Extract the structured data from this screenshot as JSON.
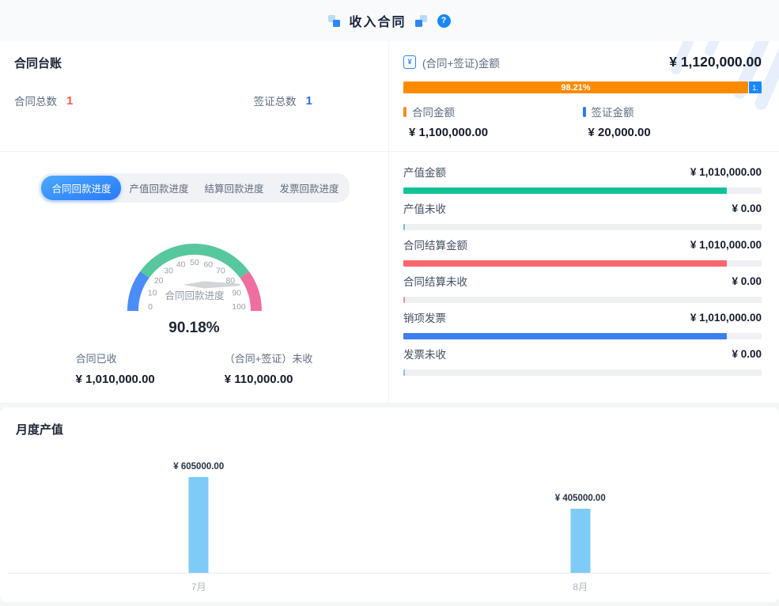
{
  "header": {
    "title": "收入合同",
    "help_glyph": "?"
  },
  "ledger": {
    "title": "合同台账",
    "stats": [
      {
        "label": "合同总数",
        "value": "1",
        "color": "#f5594a"
      },
      {
        "label": "签证总数",
        "value": "1",
        "color": "#2a6cf5"
      }
    ]
  },
  "amount_summary": {
    "icon_glyph": "¥",
    "label": "(合同+签证)金额",
    "total": "¥ 1,120,000.00",
    "progress": {
      "main_pct_label": "98.21%",
      "main_pct": 98.21,
      "main_color": "#fb8a00",
      "tail_label": "1.",
      "tail_color": "#1789fd"
    },
    "legend": [
      {
        "label": "合同金额",
        "color": "#fa8c16",
        "value": "¥ 1,100,000.00"
      },
      {
        "label": "签证金额",
        "color": "#2e7af2",
        "value": "¥ 20,000.00"
      }
    ]
  },
  "progress_tabs": {
    "items": [
      {
        "label": "合同回款进度",
        "active": true
      },
      {
        "label": "产值回款进度",
        "active": false
      },
      {
        "label": "结算回款进度",
        "active": false
      },
      {
        "label": "发票回款进度",
        "active": false
      }
    ]
  },
  "chart_data": [
    {
      "id": "recovery_gauge",
      "type": "gauge",
      "title": "合同回款进度",
      "value": 90.18,
      "value_label": "90.18%",
      "min": 0,
      "max": 100,
      "ticks": [
        0,
        10,
        20,
        30,
        40,
        50,
        60,
        70,
        80,
        90,
        100
      ],
      "segments": [
        {
          "from": 0,
          "to": 20,
          "color": "#4a8df8"
        },
        {
          "from": 20,
          "to": 80,
          "color": "#57c79d"
        },
        {
          "from": 80,
          "to": 100,
          "color": "#ef6fa0"
        }
      ],
      "stats": [
        {
          "label": "合同已收",
          "value": "¥ 1,010,000.00"
        },
        {
          "label": "（合同+签证）未收",
          "value": "¥ 110,000.00"
        }
      ]
    },
    {
      "id": "amount_bars",
      "type": "bar",
      "orientation": "horizontal",
      "max": 1120000,
      "rows": [
        {
          "label": "产值金额",
          "value": 1010000,
          "value_label": "¥ 1,010,000.00",
          "color": "#12c296",
          "fill_pct": 90.2
        },
        {
          "label": "产值未收",
          "value": 0,
          "value_label": "¥ 0.00",
          "color": "#6ac3ce",
          "fill_pct": 0.55
        },
        {
          "label": "合同结算金额",
          "value": 1010000,
          "value_label": "¥ 1,010,000.00",
          "color": "#f8676e",
          "fill_pct": 90.2
        },
        {
          "label": "合同结算未收",
          "value": 0,
          "value_label": "¥ 0.00",
          "color": "#f0959c",
          "fill_pct": 0.55
        },
        {
          "label": "销项发票",
          "value": 1010000,
          "value_label": "¥ 1,010,000.00",
          "color": "#3b7ff0",
          "fill_pct": 90.2
        },
        {
          "label": "发票未收",
          "value": 0,
          "value_label": "¥ 0.00",
          "color": "#93b9f2",
          "fill_pct": 0.55
        }
      ]
    },
    {
      "id": "monthly_output",
      "type": "bar",
      "title": "月度产值",
      "categories": [
        "7月",
        "8月"
      ],
      "values": [
        605000,
        405000
      ],
      "value_labels": [
        "¥ 605000.00",
        "¥ 405000.00"
      ],
      "bar_color": "#7ecbf8",
      "ylim": [
        0,
        650000
      ]
    }
  ]
}
